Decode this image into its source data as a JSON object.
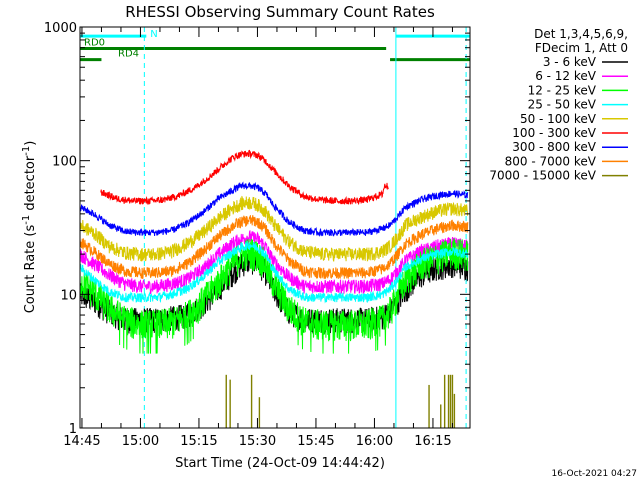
{
  "chart_data": {
    "type": "line",
    "title": "RHESSI Observing Summary Count Rates",
    "xlabel": "Start Time (24-Oct-09 14:44:42)",
    "ylabel": "Count Rate (s⁻¹ detector⁻¹)",
    "ylabel_main": "Count Rate (s",
    "ylabel_sup1": "-1",
    "ylabel_mid": " detector",
    "ylabel_sup2": "-1",
    "ylabel_end": ")",
    "y_scale": "log",
    "ylim": [
      1,
      1000
    ],
    "xlim": [
      "14:44",
      "16:24"
    ],
    "y_ticks": [
      "1",
      "10",
      "100",
      "1000"
    ],
    "x_ticks": [
      "14:45",
      "15:00",
      "15:15",
      "15:30",
      "15:45",
      "16:00",
      "16:15"
    ],
    "x_tick_minutes": [
      45,
      60,
      75,
      90,
      105,
      120,
      135
    ],
    "x_start_minutes": 44.5,
    "x_end_minutes": 144.5,
    "legend_header": [
      "Det 1,3,4,5,6,9,",
      "FDecim 1, Att 0"
    ],
    "legend_placement": "top-right outside plot",
    "timestamp": "16-Oct-2021 04:27",
    "flags": [
      {
        "label": "N",
        "color": "#00ffff",
        "start": 44.5,
        "end": 61.5,
        "level": 855
      },
      {
        "label": "",
        "color": "#00ffff",
        "start": 125.5,
        "end": 144.5,
        "level": 855
      },
      {
        "label": "RD0",
        "color": "#008000",
        "start": 44.5,
        "end": 123,
        "level": 690
      },
      {
        "label": "RD4",
        "color": "#008000",
        "start": 44.5,
        "end": 50,
        "level": 570
      },
      {
        "label": "",
        "color": "#008000",
        "start": 124,
        "end": 144.5,
        "level": 570
      }
    ],
    "saa_boundaries": [
      {
        "minute": 61,
        "style": "dashed"
      },
      {
        "minute": 125.5,
        "style": "solid"
      },
      {
        "minute": 143.5,
        "style": "dashed"
      }
    ],
    "series": [
      {
        "name": "3 - 6 keV",
        "color": "#000000",
        "x": [
          44.5,
          48,
          52,
          56,
          60,
          64,
          68,
          72,
          76,
          80,
          84,
          86,
          88,
          90,
          92,
          94,
          98,
          102,
          106,
          110,
          114,
          118,
          122,
          124,
          126,
          128,
          132,
          136,
          140,
          144
        ],
        "y": [
          10,
          9,
          7.5,
          6.5,
          6.5,
          6.5,
          6.7,
          7,
          8.5,
          11,
          15,
          17,
          18,
          17.5,
          15,
          11,
          7.5,
          6.5,
          6.5,
          6.5,
          6.5,
          6.5,
          6.8,
          7.5,
          9,
          11,
          14,
          16,
          17,
          16
        ]
      },
      {
        "name": "6 - 12 keV",
        "color": "#ff00ff",
        "x": [
          44.5,
          48,
          52,
          56,
          60,
          64,
          68,
          72,
          76,
          80,
          84,
          86,
          88,
          90,
          92,
          94,
          98,
          102,
          106,
          110,
          114,
          118,
          122,
          124,
          126,
          128,
          132,
          136,
          140,
          144
        ],
        "y": [
          20,
          17,
          14,
          12,
          11.5,
          11.5,
          12,
          13,
          15.5,
          20,
          24.5,
          26,
          27,
          26,
          23,
          18,
          13.5,
          11.5,
          11.5,
          11.5,
          11.5,
          11.5,
          12,
          13,
          15,
          18,
          21,
          23,
          24,
          23
        ]
      },
      {
        "name": "12 - 25 keV",
        "color": "#00ff00",
        "x": [
          44.5,
          48,
          52,
          56,
          60,
          64,
          68,
          72,
          76,
          80,
          84,
          86,
          88,
          90,
          92,
          94,
          98,
          102,
          106,
          110,
          114,
          118,
          122,
          124,
          126,
          128,
          132,
          136,
          140,
          144
        ],
        "y": [
          13,
          10.5,
          8,
          6.5,
          6,
          6,
          6.2,
          7,
          9,
          12.5,
          17.5,
          20,
          21,
          20,
          17,
          12.5,
          8,
          6.3,
          6,
          6,
          6,
          6,
          6.5,
          7.5,
          10,
          13,
          17,
          19,
          21,
          20
        ]
      },
      {
        "name": "25 - 50 keV",
        "color": "#00ffff",
        "x": [
          44.5,
          48,
          52,
          56,
          60,
          64,
          68,
          72,
          76,
          80,
          84,
          86,
          88,
          90,
          92,
          94,
          98,
          102,
          106,
          110,
          114,
          118,
          122,
          124,
          126,
          128,
          132,
          136,
          140,
          144
        ],
        "y": [
          16,
          13,
          10.5,
          9.5,
          9.5,
          9.5,
          10,
          11,
          13.5,
          17.5,
          21,
          22.5,
          23.5,
          22.5,
          20,
          15.5,
          11,
          9.5,
          9.5,
          9.5,
          9.5,
          9.5,
          10,
          11,
          13,
          16,
          18.5,
          20,
          21,
          20
        ]
      },
      {
        "name": "50 - 100 keV",
        "color": "#d8c800",
        "x": [
          44.5,
          48,
          52,
          56,
          60,
          64,
          68,
          72,
          76,
          80,
          84,
          86,
          88,
          90,
          92,
          94,
          98,
          102,
          106,
          110,
          114,
          118,
          122,
          124,
          126,
          128,
          132,
          136,
          140,
          144
        ],
        "y": [
          33,
          29,
          23,
          20.5,
          20,
          20,
          21,
          24,
          29,
          37,
          45,
          48,
          49,
          47,
          42,
          34,
          25,
          21,
          20,
          20,
          20,
          20,
          21,
          23,
          27,
          33,
          38,
          42,
          44,
          42
        ]
      },
      {
        "name": "100 - 300 keV",
        "color": "#ff0000",
        "x": [
          44.5,
          48,
          49.5,
          50,
          54,
          58,
          62,
          66,
          70,
          74,
          78,
          82,
          84,
          86,
          88,
          90,
          92,
          94,
          98,
          102,
          106,
          110,
          114,
          118,
          122,
          122.6,
          123.2,
          124
        ],
        "y": [
          0,
          0,
          0,
          58,
          52,
          50,
          50,
          51,
          55,
          63,
          77,
          97,
          107,
          112,
          113,
          110,
          100,
          86,
          65,
          54,
          51,
          50,
          50,
          51,
          56,
          65,
          65,
          0
        ]
      },
      {
        "name": "300 - 800 keV",
        "color": "#0000ff",
        "x": [
          44.5,
          48,
          52,
          56,
          60,
          64,
          68,
          72,
          76,
          80,
          84,
          86,
          88,
          90,
          92,
          94,
          98,
          102,
          106,
          110,
          114,
          118,
          122,
          124,
          126,
          128,
          132,
          136,
          140,
          144
        ],
        "y": [
          45,
          40,
          33,
          29.5,
          29,
          29,
          30,
          34,
          41,
          52,
          61,
          65,
          65,
          63,
          57,
          47,
          35,
          30,
          29,
          29,
          29,
          29,
          31,
          33,
          38,
          45,
          51,
          55,
          57,
          55
        ]
      },
      {
        "name": "800 - 7000 keV",
        "color": "#ff8000",
        "x": [
          44.5,
          48,
          52,
          56,
          60,
          64,
          68,
          72,
          76,
          80,
          84,
          86,
          88,
          90,
          92,
          94,
          98,
          102,
          106,
          110,
          114,
          118,
          122,
          124,
          126,
          128,
          132,
          136,
          140,
          144
        ],
        "y": [
          25,
          21,
          17,
          15,
          14.5,
          14.5,
          15,
          17,
          21,
          27,
          33,
          35,
          36,
          35,
          31,
          25,
          18,
          15,
          14.5,
          14.5,
          14.5,
          14.5,
          15.5,
          17,
          20,
          24,
          28,
          31,
          33,
          32
        ]
      },
      {
        "name": "7000 - 15000 keV",
        "color": "#808000",
        "spikes": [
          {
            "x": 82,
            "y": 2.5
          },
          {
            "x": 83,
            "y": 2.3
          },
          {
            "x": 88.5,
            "y": 2.5
          },
          {
            "x": 90.5,
            "y": 1.7
          },
          {
            "x": 134,
            "y": 2.1
          },
          {
            "x": 138,
            "y": 2.5
          },
          {
            "x": 139,
            "y": 2.5
          },
          {
            "x": 139.5,
            "y": 2.5
          },
          {
            "x": 140,
            "y": 2.5
          },
          {
            "x": 140.5,
            "y": 1.8
          },
          {
            "x": 137,
            "y": 1.5
          }
        ]
      }
    ]
  }
}
